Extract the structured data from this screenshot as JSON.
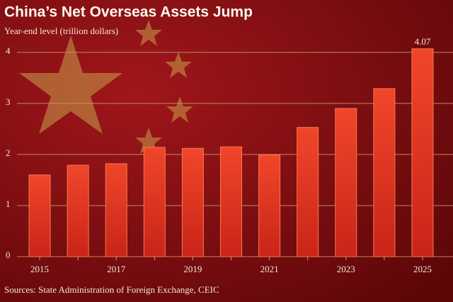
{
  "chart_data": {
    "type": "bar",
    "title": "China’s Net Overseas Assets Jump",
    "subtitle": "Year-end level (trillion dollars)",
    "source": "Sources: State Administration of Foreign Exchange, CEIC",
    "categories": [
      "2015",
      null,
      "2017",
      null,
      "2019",
      null,
      "2021",
      null,
      "2023",
      null,
      "2025"
    ],
    "values": [
      1.6,
      1.79,
      1.82,
      2.14,
      2.12,
      2.15,
      1.99,
      2.53,
      2.9,
      3.29,
      4.07
    ],
    "value_labels": [
      null,
      null,
      null,
      null,
      null,
      null,
      null,
      null,
      null,
      null,
      "4.07"
    ],
    "color": "#e23a24",
    "ylim": [
      0,
      4.4
    ],
    "yticks": [
      0,
      1,
      2,
      3,
      4
    ],
    "grid": true
  }
}
